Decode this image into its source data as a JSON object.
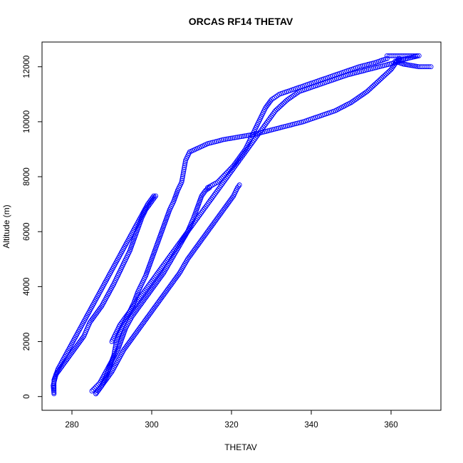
{
  "chart_data": {
    "type": "scatter",
    "title": "ORCAS RF14 THETAV",
    "xlabel": "THETAV",
    "ylabel": "Altitude (m)",
    "xlim": [
      272.5,
      372.5
    ],
    "ylim": [
      -500,
      12900
    ],
    "xticks": [
      280,
      300,
      320,
      340,
      360
    ],
    "yticks": [
      0,
      2000,
      4000,
      6000,
      8000,
      10000,
      12000
    ],
    "grid": false,
    "legend": "none",
    "point_color": "#0000ff",
    "marker": "open-circle",
    "series": [
      {
        "points": [
          [
            275.5,
            100
          ],
          [
            275.3,
            400
          ],
          [
            276,
            800
          ],
          [
            277.5,
            1100
          ],
          [
            279.5,
            1500
          ],
          [
            281,
            1800
          ],
          [
            283,
            2200
          ],
          [
            284.5,
            2700
          ],
          [
            286,
            3000
          ],
          [
            287.5,
            3300
          ],
          [
            289,
            3700
          ],
          [
            290.5,
            4100
          ],
          [
            291.5,
            4400
          ],
          [
            292.5,
            4700
          ],
          [
            293.5,
            5000
          ],
          [
            294.5,
            5300
          ],
          [
            295.5,
            5700
          ],
          [
            296.5,
            6100
          ],
          [
            297.5,
            6500
          ],
          [
            298.5,
            6800
          ],
          [
            299.5,
            7000
          ],
          [
            300.5,
            7200
          ],
          [
            301,
            7300
          ]
        ]
      },
      {
        "points": [
          [
            286,
            100
          ],
          [
            287.5,
            400
          ],
          [
            288.5,
            700
          ],
          [
            289.5,
            1100
          ],
          [
            290.5,
            1500
          ],
          [
            291,
            1900
          ],
          [
            291.5,
            2200
          ],
          [
            292.5,
            2500
          ],
          [
            293.5,
            2800
          ],
          [
            294.5,
            3100
          ],
          [
            295.5,
            3400
          ],
          [
            296.5,
            3800
          ],
          [
            297.5,
            4100
          ],
          [
            298.5,
            4400
          ],
          [
            299.5,
            4800
          ],
          [
            300.5,
            5200
          ],
          [
            301.5,
            5600
          ],
          [
            302.5,
            6000
          ],
          [
            303.5,
            6400
          ],
          [
            304.5,
            6800
          ],
          [
            305.5,
            7100
          ],
          [
            306.5,
            7500
          ],
          [
            307.5,
            7800
          ],
          [
            308,
            8200
          ],
          [
            308.5,
            8600
          ],
          [
            309.5,
            8900
          ],
          [
            314,
            9200
          ],
          [
            318,
            9350
          ],
          [
            322,
            9450
          ],
          [
            326,
            9550
          ],
          [
            330,
            9700
          ],
          [
            334,
            9850
          ],
          [
            338,
            10000
          ],
          [
            342,
            10200
          ],
          [
            346,
            10400
          ],
          [
            350,
            10700
          ],
          [
            354,
            11100
          ],
          [
            357,
            11500
          ],
          [
            360,
            11900
          ],
          [
            362,
            12300
          ]
        ]
      },
      {
        "points": [
          [
            285,
            200
          ],
          [
            287,
            500
          ],
          [
            288.5,
            900
          ],
          [
            290,
            1300
          ],
          [
            291.5,
            1700
          ],
          [
            292.5,
            2100
          ],
          [
            293.5,
            2500
          ],
          [
            295,
            2900
          ],
          [
            297,
            3300
          ],
          [
            299,
            3700
          ],
          [
            301,
            4100
          ],
          [
            303,
            4500
          ],
          [
            305,
            5000
          ],
          [
            307,
            5500
          ],
          [
            309,
            6000
          ],
          [
            310.5,
            6500
          ],
          [
            311.5,
            6900
          ],
          [
            312.5,
            7300
          ],
          [
            313.5,
            7500
          ],
          [
            314.5,
            7600
          ]
        ]
      },
      {
        "points": [
          [
            314,
            7600
          ],
          [
            316.5,
            7800
          ],
          [
            318.5,
            8100
          ],
          [
            320.5,
            8400
          ],
          [
            322,
            8700
          ],
          [
            323.5,
            9000
          ],
          [
            324.5,
            9300
          ],
          [
            325.5,
            9600
          ],
          [
            326.5,
            9900
          ],
          [
            327.5,
            10200
          ],
          [
            328.5,
            10500
          ],
          [
            330,
            10800
          ],
          [
            332,
            11000
          ],
          [
            336,
            11200
          ],
          [
            340,
            11400
          ],
          [
            344,
            11600
          ],
          [
            348,
            11800
          ],
          [
            352,
            12000
          ],
          [
            356,
            12150
          ],
          [
            359,
            12300
          ]
        ]
      },
      {
        "points": [
          [
            286,
            100
          ],
          [
            288,
            500
          ],
          [
            290,
            900
          ],
          [
            291.5,
            1300
          ],
          [
            293,
            1700
          ],
          [
            295,
            2100
          ],
          [
            297,
            2500
          ],
          [
            299,
            2900
          ],
          [
            301,
            3300
          ],
          [
            303,
            3700
          ],
          [
            305,
            4100
          ],
          [
            307,
            4500
          ],
          [
            309,
            5000
          ],
          [
            311,
            5400
          ],
          [
            313,
            5800
          ],
          [
            315,
            6200
          ],
          [
            317,
            6600
          ],
          [
            319,
            7000
          ],
          [
            320.5,
            7300
          ],
          [
            321.5,
            7600
          ],
          [
            322,
            7700
          ]
        ]
      },
      {
        "points": [
          [
            290,
            2000
          ],
          [
            292,
            2600
          ],
          [
            295,
            3200
          ],
          [
            298,
            3800
          ],
          [
            301,
            4400
          ],
          [
            304,
            5000
          ],
          [
            307,
            5600
          ],
          [
            310,
            6200
          ],
          [
            313,
            6800
          ],
          [
            316,
            7400
          ],
          [
            319,
            8000
          ],
          [
            322,
            8600
          ],
          [
            325,
            9200
          ],
          [
            328,
            9800
          ],
          [
            331,
            10400
          ],
          [
            334,
            10800
          ],
          [
            337,
            11100
          ],
          [
            341,
            11300
          ],
          [
            345,
            11500
          ],
          [
            349,
            11700
          ],
          [
            353,
            11850
          ],
          [
            357,
            12000
          ],
          [
            361,
            12150
          ],
          [
            364,
            12300
          ]
        ]
      },
      {
        "points": [
          [
            275.5,
            150
          ],
          [
            275.5,
            600
          ],
          [
            276.5,
            1000
          ],
          [
            278,
            1400
          ],
          [
            279.5,
            1800
          ],
          [
            281,
            2200
          ],
          [
            282.5,
            2600
          ],
          [
            284,
            3000
          ],
          [
            285.5,
            3400
          ],
          [
            287,
            3800
          ],
          [
            288.5,
            4200
          ],
          [
            290,
            4600
          ],
          [
            291.5,
            5000
          ],
          [
            293,
            5400
          ],
          [
            294.5,
            5800
          ],
          [
            296,
            6200
          ],
          [
            297.5,
            6600
          ],
          [
            299,
            7000
          ],
          [
            300.5,
            7300
          ]
        ]
      },
      {
        "points": [
          [
            359,
            12400
          ],
          [
            361,
            12400
          ],
          [
            363,
            12400
          ],
          [
            365,
            12400
          ],
          [
            367,
            12400
          ],
          [
            361,
            12200
          ],
          [
            363,
            12100
          ],
          [
            365,
            12050
          ],
          [
            367,
            12000
          ],
          [
            369,
            12000
          ],
          [
            370,
            12000
          ]
        ]
      }
    ]
  }
}
